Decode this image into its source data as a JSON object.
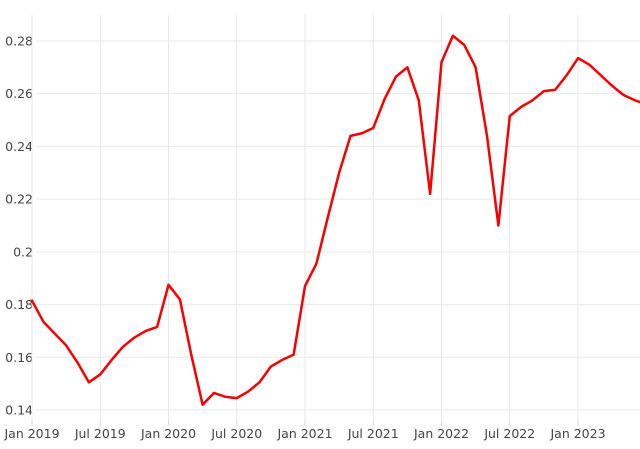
{
  "chart_data": {
    "type": "line",
    "title": "",
    "xlabel": "",
    "ylabel": "",
    "grid": true,
    "legend": "none",
    "ylim": [
      0.14,
      0.28
    ],
    "y_ticks": [
      0.28,
      0.26,
      0.24,
      0.22,
      0.2,
      0.18,
      0.16,
      0.14
    ],
    "y_tick_labels": [
      "0.28",
      "0.26",
      "0.24",
      "0.22",
      "0.2",
      "0.18",
      "0.16",
      "0.14"
    ],
    "x_tick_labels": [
      "Jan 2019",
      "Jul 2019",
      "Jan 2020",
      "Jul 2020",
      "Jan 2021",
      "Jul 2021",
      "Jan 2022",
      "Jul 2022",
      "Jan 2023"
    ],
    "x": [
      "Jan 2019",
      "Feb 2019",
      "Mar 2019",
      "Apr 2019",
      "May 2019",
      "Jun 2019",
      "Jul 2019",
      "Aug 2019",
      "Sep 2019",
      "Oct 2019",
      "Nov 2019",
      "Dec 2019",
      "Jan 2020",
      "Feb 2020",
      "Mar 2020",
      "Apr 2020",
      "May 2020",
      "Jun 2020",
      "Jul 2020",
      "Aug 2020",
      "Sep 2020",
      "Oct 2020",
      "Nov 2020",
      "Dec 2020",
      "Jan 2021",
      "Feb 2021",
      "Mar 2021",
      "Apr 2021",
      "May 2021",
      "Jun 2021",
      "Jul 2021",
      "Aug 2021",
      "Sep 2021",
      "Oct 2021",
      "Nov 2021",
      "Dec 2021",
      "Jan 2022",
      "Feb 2022",
      "Mar 2022",
      "Apr 2022",
      "May 2022",
      "Jun 2022",
      "Jul 2022",
      "Aug 2022",
      "Sep 2022",
      "Oct 2022",
      "Nov 2022",
      "Dec 2022",
      "Jan 2023",
      "Feb 2023",
      "Mar 2023",
      "Apr 2023",
      "May 2023",
      "Jun 2023",
      "Jul 2023"
    ],
    "series": [
      {
        "name": "value",
        "color": "#f50000",
        "values": [
          0.1815,
          0.1735,
          0.169,
          0.1645,
          0.158,
          0.1505,
          0.1535,
          0.159,
          0.164,
          0.1675,
          0.17,
          0.1715,
          0.1875,
          0.182,
          0.161,
          0.142,
          0.1465,
          0.145,
          0.1445,
          0.147,
          0.1505,
          0.1565,
          0.159,
          0.161,
          0.187,
          0.1955,
          0.213,
          0.23,
          0.244,
          0.245,
          0.247,
          0.258,
          0.2665,
          0.27,
          0.2575,
          0.222,
          0.272,
          0.282,
          0.2785,
          0.27,
          0.244,
          0.21,
          0.2515,
          0.255,
          0.2575,
          0.261,
          0.2615,
          0.267,
          0.2735,
          0.271,
          0.267,
          0.263,
          0.2595,
          0.2575,
          0.256
        ]
      }
    ],
    "colors": {
      "line": "#f50000",
      "grid": "#e9e9e9",
      "tick": "#d9d9d9",
      "label_text": "#444444",
      "background": "#ffffff"
    }
  }
}
